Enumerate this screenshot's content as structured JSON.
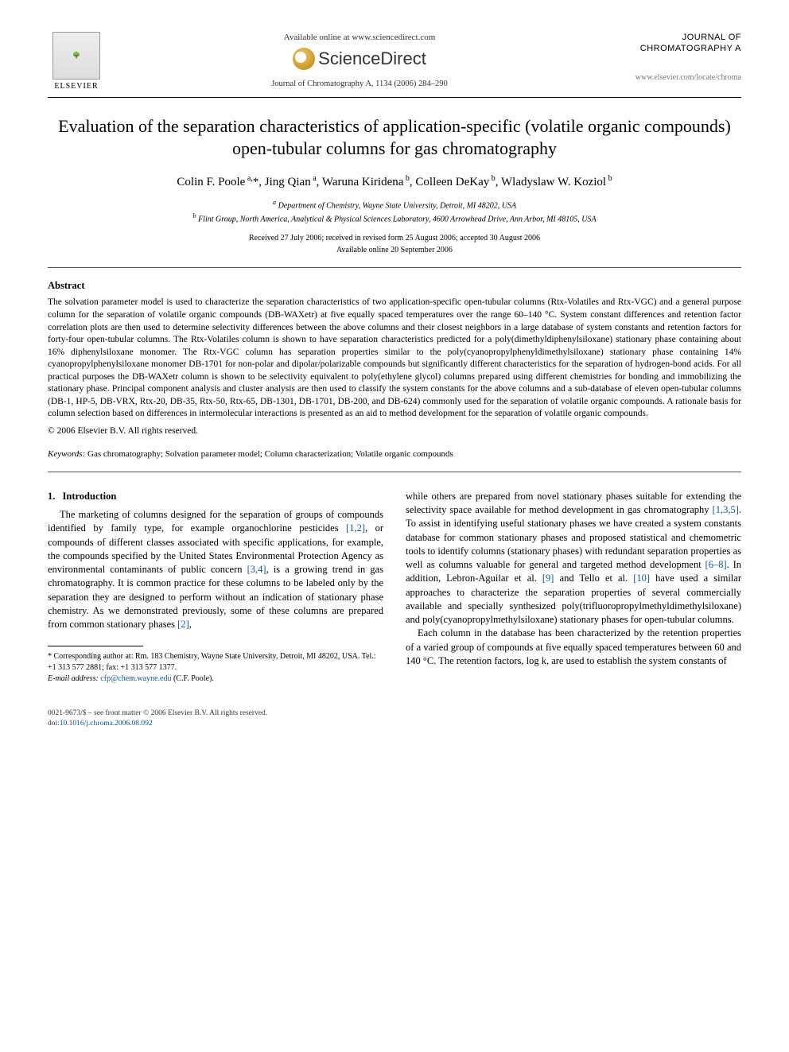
{
  "header": {
    "elsevier": "ELSEVIER",
    "available": "Available online at www.sciencedirect.com",
    "sciencedirect": "ScienceDirect",
    "journal_ref": "Journal of Chromatography A, 1134 (2006) 284–290",
    "journal_logo_line1": "JOURNAL OF",
    "journal_logo_line2": "CHROMATOGRAPHY A",
    "journal_url": "www.elsevier.com/locate/chroma"
  },
  "title": "Evaluation of the separation characteristics of application-specific (volatile organic compounds) open-tubular columns for gas chromatography",
  "authors_html": "Colin F. Poole <sup>a,</sup>*, Jing Qian <sup>a</sup>, Waruna Kiridena <sup>b</sup>, Colleen DeKay <sup>b</sup>, Wladyslaw W. Koziol <sup>b</sup>",
  "affiliations": {
    "a": "Department of Chemistry, Wayne State University, Detroit, MI 48202, USA",
    "b": "Flint Group, North America, Analytical & Physical Sciences Laboratory, 4600 Arrowhead Drive, Ann Arbor, MI 48105, USA"
  },
  "dates": {
    "received": "Received 27 July 2006; received in revised form 25 August 2006; accepted 30 August 2006",
    "online": "Available online 20 September 2006"
  },
  "abstract": {
    "heading": "Abstract",
    "body": "The solvation parameter model is used to characterize the separation characteristics of two application-specific open-tubular columns (Rtx-Volatiles and Rtx-VGC) and a general purpose column for the separation of volatile organic compounds (DB-WAXetr) at five equally spaced temperatures over the range 60–140 °C. System constant differences and retention factor correlation plots are then used to determine selectivity differences between the above columns and their closest neighbors in a large database of system constants and retention factors for forty-four open-tubular columns. The Rtx-Volatiles column is shown to have separation characteristics predicted for a poly(dimethyldiphenylsiloxane) stationary phase containing about 16% diphenylsiloxane monomer. The Rtx-VGC column has separation properties similar to the poly(cyanopropylphenyldimethylsiloxane) stationary phase containing 14% cyanopropylphenylsiloxane monomer DB-1701 for non-polar and dipolar/polarizable compounds but significantly different characteristics for the separation of hydrogen-bond acids. For all practical purposes the DB-WAXetr column is shown to be selectivity equivalent to poly(ethylene glycol) columns prepared using different chemistries for bonding and immobilizing the stationary phase. Principal component analysis and cluster analysis are then used to classify the system constants for the above columns and a sub-database of eleven open-tubular columns (DB-1, HP-5, DB-VRX, Rtx-20, DB-35, Rtx-50, Rtx-65, DB-1301, DB-1701, DB-200, and DB-624) commonly used for the separation of volatile organic compounds. A rationale basis for column selection based on differences in intermolecular interactions is presented as an aid to method development for the separation of volatile organic compounds.",
    "copyright": "© 2006 Elsevier B.V. All rights reserved."
  },
  "keywords": {
    "label": "Keywords:",
    "text": "Gas chromatography; Solvation parameter model; Column characterization; Volatile organic compounds"
  },
  "section1": {
    "num": "1.",
    "heading": "Introduction"
  },
  "body": {
    "col1_p1a": "The marketing of columns designed for the separation of groups of compounds identified by family type, for example organochlorine pesticides ",
    "cite12": "[1,2]",
    "col1_p1b": ", or compounds of different classes associated with specific applications, for example, the compounds specified by the United States Environmental Protection Agency as environmental contaminants of public concern ",
    "cite34": "[3,4]",
    "col1_p1c": ", is a growing trend in gas chromatography. It is common practice for these columns to be labeled only by the separation they are designed to perform without an indication of stationary phase chemistry. As we demonstrated previously, some of these columns are prepared from common stationary phases ",
    "cite2": "[2]",
    "col1_p1d": ",",
    "col2_p1a": "while others are prepared from novel stationary phases suitable for extending the selectivity space available for method development in gas chromatography ",
    "cite135": "[1,3,5]",
    "col2_p1b": ". To assist in identifying useful stationary phases we have created a system constants database for common stationary phases and proposed statistical and chemometric tools to identify columns (stationary phases) with redundant separation properties as well as columns valuable for general and targeted method development ",
    "cite68": "[6–8]",
    "col2_p1c": ". In addition, Lebron-Aguilar et al. ",
    "cite9": "[9]",
    "col2_p1d": " and Tello et al. ",
    "cite10": "[10]",
    "col2_p1e": " have used a similar approaches to characterize the separation properties of several commercially available and specially synthesized poly(trifluoropropylmethyldimethylsiloxane) and poly(cyanopropylmethylsiloxane) stationary phases for open-tubular columns.",
    "col2_p2": "Each column in the database has been characterized by the retention properties of a varied group of compounds at five equally spaced temperatures between 60 and 140 °C. The retention factors, log k, are used to establish the system constants of"
  },
  "footnote": {
    "corr": "* Corresponding author at: Rm. 183 Chemistry, Wayne State University, Detroit, MI 48202, USA. Tel.: +1 313 577 2881; fax: +1 313 577 1377.",
    "email_label": "E-mail address:",
    "email": "cfp@chem.wayne.edu",
    "email_name": "(C.F. Poole)."
  },
  "footer": {
    "issn": "0021-9673/$ – see front matter © 2006 Elsevier B.V. All rights reserved.",
    "doi_label": "doi:",
    "doi": "10.1016/j.chroma.2006.08.092"
  }
}
